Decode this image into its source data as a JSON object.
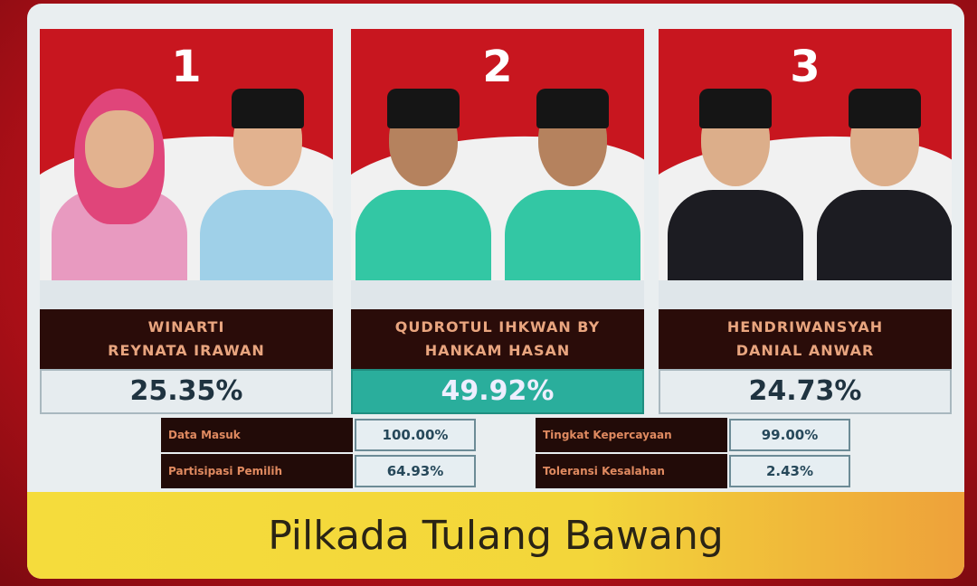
{
  "candidates": [
    {
      "number": "1",
      "name_line1": "WINARTI",
      "name_line2": "REYNATA IRAWAN",
      "percent": "25.35%",
      "shirt_color": "#9fd0e8"
    },
    {
      "number": "2",
      "name_line1": "QUDROTUL IHKWAN BY",
      "name_line2": "HANKAM HASAN",
      "percent": "49.92%",
      "shirt_color": "#33c7a4"
    },
    {
      "number": "3",
      "name_line1": "HENDRIWANSYAH",
      "name_line2": "DANIAL ANWAR",
      "percent": "24.73%",
      "shirt_color": "#1c1c22"
    }
  ],
  "stats_left": [
    {
      "label": "Data Masuk",
      "value": "100.00%"
    },
    {
      "label": "Partisipasi Pemilih",
      "value": "64.93%"
    }
  ],
  "stats_right": [
    {
      "label": "Tingkat Kepercayaan",
      "value": "99.00%"
    },
    {
      "label": "Toleransi Kesalahan",
      "value": "2.43%"
    }
  ],
  "banner": {
    "title": "Pilkada Tulang Bawang"
  },
  "colors": {
    "winner": "#2aae9c",
    "name_bg": "#2a0c09",
    "banner": "#f3d63a",
    "flag_red": "#c8161f"
  }
}
